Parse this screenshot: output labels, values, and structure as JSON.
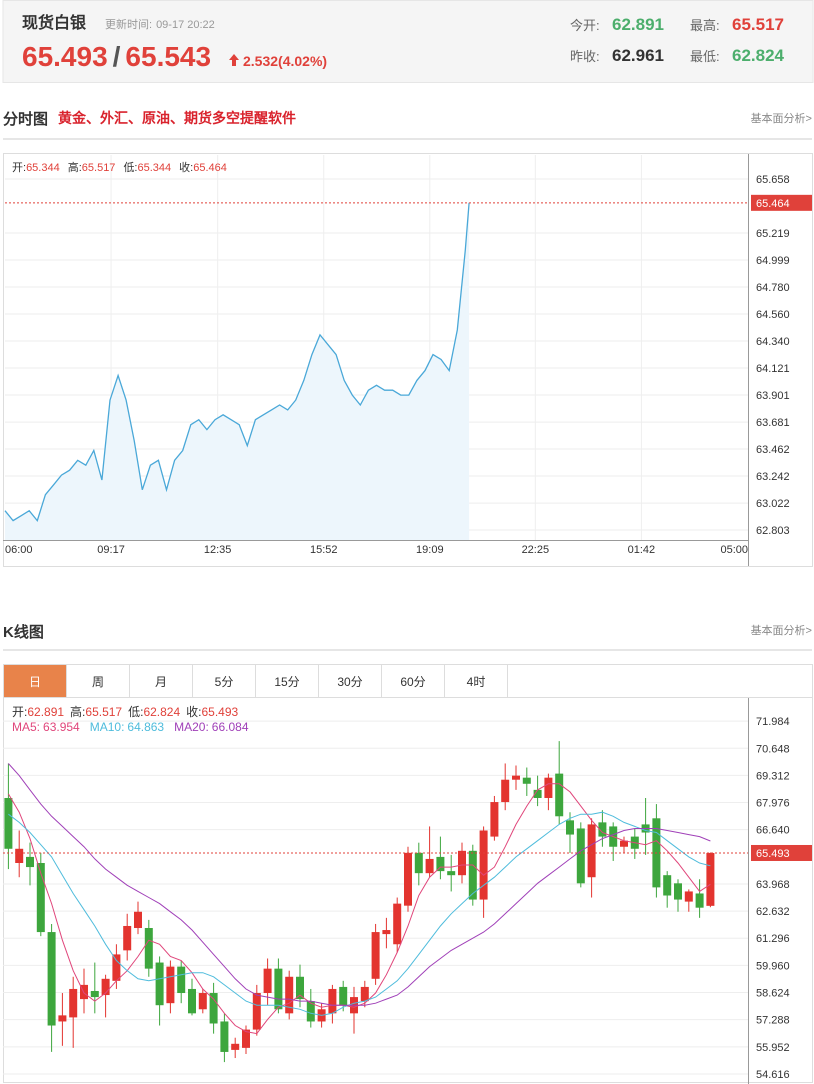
{
  "header": {
    "title": "现货白银",
    "update_label": "更新时间:",
    "update_time": "09-17 20:22",
    "price": "65.493",
    "separator": "/",
    "price2": "65.543",
    "change": "2.532(4.02%)",
    "stats": [
      {
        "label": "今开:",
        "value": "62.891",
        "color": "#4cae6c"
      },
      {
        "label": "最高:",
        "value": "65.517",
        "color": "#e0413a"
      },
      {
        "label": "昨收:",
        "value": "62.961",
        "color": "#333333"
      },
      {
        "label": "最低:",
        "value": "62.824",
        "color": "#4cae6c"
      }
    ]
  },
  "sections": [
    {
      "title": "分时图",
      "promo": "黄金、外汇、原油、期货多空提醒软件",
      "link": "基本面分析>"
    },
    {
      "title": "K线图",
      "link": "基本面分析>"
    }
  ],
  "tabs": [
    "日",
    "周",
    "月",
    "5分",
    "15分",
    "30分",
    "60分",
    "4时"
  ],
  "active_tab": 0,
  "chart_data": [
    {
      "type": "line",
      "stats": [
        {
          "label": "开:",
          "value": 65.344
        },
        {
          "label": "高:",
          "value": 65.517
        },
        {
          "label": "低:",
          "value": 65.344
        },
        {
          "label": "收:",
          "value": 65.464
        }
      ],
      "x": [
        "06:00",
        "06:15",
        "06:30",
        "06:45",
        "07:00",
        "07:15",
        "07:30",
        "07:45",
        "08:00",
        "08:15",
        "08:30",
        "08:45",
        "09:00",
        "09:15",
        "09:30",
        "09:45",
        "10:00",
        "10:15",
        "10:30",
        "10:45",
        "11:00",
        "11:15",
        "11:30",
        "11:45",
        "12:00",
        "12:15",
        "12:30",
        "12:45",
        "13:00",
        "13:15",
        "13:30",
        "13:45",
        "14:00",
        "14:15",
        "14:30",
        "14:45",
        "15:00",
        "15:15",
        "15:30",
        "15:45",
        "16:00",
        "16:15",
        "16:30",
        "16:45",
        "17:00",
        "17:15",
        "17:30",
        "17:45",
        "18:00",
        "18:15",
        "18:30",
        "18:45",
        "19:00",
        "19:15",
        "19:30",
        "19:45",
        "20:00",
        "20:15",
        "20:22"
      ],
      "values": [
        62.96,
        62.88,
        62.92,
        62.96,
        62.88,
        63.09,
        63.17,
        63.25,
        63.29,
        63.37,
        63.33,
        63.45,
        63.21,
        63.86,
        64.06,
        63.86,
        63.53,
        63.13,
        63.33,
        63.37,
        63.13,
        63.37,
        63.45,
        63.66,
        63.7,
        63.62,
        63.7,
        63.74,
        63.7,
        63.66,
        63.49,
        63.7,
        63.74,
        63.78,
        63.82,
        63.78,
        63.86,
        64.02,
        64.23,
        64.39,
        64.31,
        64.23,
        64.02,
        63.9,
        63.82,
        63.94,
        63.98,
        63.94,
        63.94,
        63.9,
        63.9,
        64.02,
        64.1,
        64.23,
        64.19,
        64.1,
        64.43,
        65.08,
        65.464
      ],
      "color": "#4aa8d8",
      "fill": "#edf6fc",
      "xlim": [
        "06:00",
        "05:00"
      ],
      "xticks": [
        "06:00",
        "09:17",
        "12:35",
        "15:52",
        "19:09",
        "22:25",
        "01:42",
        "05:00"
      ],
      "ylim": [
        62.722,
        65.853
      ],
      "yticks": [
        65.658,
        65.219,
        64.999,
        {
          "value": 64.78,
          "label": "64.780"
        },
        {
          "value": 64.56,
          "label": "64.560"
        },
        {
          "value": 64.34,
          "label": "64.340"
        },
        64.121,
        63.901,
        63.681,
        63.462,
        63.242,
        63.022,
        62.803
      ],
      "grid": true,
      "last_line_color": "#e0413a"
    },
    {
      "type": "candlestick",
      "ohlc_labels": [
        "开:",
        "高:",
        "低:",
        "收:"
      ],
      "open": [
        68.2,
        65.0,
        65.3,
        65.0,
        61.6,
        57.2,
        57.4,
        58.3,
        58.7,
        58.5,
        59.2,
        60.7,
        61.8,
        61.8,
        60.1,
        58.1,
        59.9,
        58.8,
        57.8,
        58.6,
        57.2,
        55.8,
        55.9,
        56.8,
        58.6,
        59.8,
        57.6,
        59.4,
        58.2,
        57.2,
        57.6,
        58.9,
        57.6,
        58.2,
        59.3,
        61.5,
        61.0,
        62.9,
        65.5,
        64.5,
        65.3,
        64.6,
        64.4,
        65.6,
        63.2,
        66.3,
        68.0,
        69.1,
        69.2,
        68.6,
        68.2,
        69.4,
        67.1,
        66.7,
        64.3,
        67.0,
        66.8,
        65.8,
        66.3,
        66.9,
        67.2,
        64.4,
        64.0,
        63.1,
        63.5,
        62.891
      ],
      "high": [
        69.9,
        66.6,
        66.0,
        65.5,
        62.0,
        58.6,
        59.4,
        59.8,
        60.1,
        59.5,
        61.0,
        62.5,
        63.1,
        62.2,
        60.4,
        60.2,
        60.2,
        59.3,
        58.8,
        59.1,
        57.6,
        56.4,
        57.0,
        59.0,
        60.3,
        60.3,
        59.7,
        60.0,
        58.8,
        58.1,
        59.0,
        59.2,
        58.9,
        59.2,
        62.0,
        62.3,
        63.3,
        65.8,
        66.0,
        66.8,
        66.3,
        65.4,
        66.0,
        65.9,
        66.8,
        68.3,
        69.9,
        69.8,
        69.7,
        69.3,
        69.4,
        71.0,
        67.5,
        67.0,
        67.2,
        67.6,
        67.0,
        66.3,
        66.7,
        68.2,
        67.9,
        64.6,
        64.2,
        63.7,
        64.2,
        65.517
      ],
      "low": [
        64.7,
        64.3,
        63.9,
        61.4,
        55.7,
        56.0,
        55.9,
        57.6,
        57.6,
        57.4,
        58.8,
        60.2,
        61.5,
        59.4,
        57.0,
        57.6,
        58.1,
        57.5,
        57.6,
        56.6,
        55.2,
        55.4,
        55.6,
        56.5,
        58.0,
        57.6,
        57.3,
        57.9,
        56.9,
        56.9,
        57.1,
        57.7,
        56.6,
        57.9,
        59.0,
        60.8,
        60.6,
        62.6,
        63.9,
        64.3,
        64.2,
        63.6,
        64.0,
        62.9,
        62.3,
        66.1,
        67.6,
        68.6,
        68.3,
        67.8,
        67.6,
        66.9,
        65.5,
        63.8,
        63.3,
        65.8,
        65.1,
        65.5,
        65.2,
        65.4,
        63.3,
        62.8,
        62.6,
        62.6,
        62.3,
        62.824
      ],
      "close": [
        65.7,
        65.7,
        64.8,
        61.6,
        57.0,
        57.5,
        58.8,
        59.0,
        58.4,
        59.3,
        60.5,
        61.9,
        62.6,
        59.8,
        58.0,
        59.9,
        58.6,
        57.6,
        58.6,
        57.1,
        55.7,
        56.1,
        56.8,
        58.6,
        59.8,
        57.8,
        59.4,
        58.3,
        57.2,
        57.8,
        58.8,
        58.0,
        58.4,
        58.9,
        61.6,
        61.7,
        63.0,
        65.5,
        64.5,
        65.2,
        64.6,
        64.4,
        65.6,
        63.2,
        66.6,
        68.0,
        69.1,
        69.3,
        68.9,
        68.2,
        69.2,
        67.3,
        66.4,
        64.0,
        66.9,
        66.3,
        65.8,
        66.1,
        65.7,
        66.5,
        63.8,
        63.4,
        63.2,
        63.6,
        62.8,
        65.493
      ],
      "up_color": "#e3342f",
      "down_color": "#3da63d",
      "series": [
        {
          "name": "MA5:",
          "color": "#e0467b",
          "values": [
            68.4,
            67.5,
            66.2,
            64.5,
            63.0,
            61.2,
            59.7,
            58.6,
            58.2,
            58.6,
            59.2,
            59.7,
            60.4,
            61.2,
            61.0,
            60.4,
            60.2,
            59.6,
            58.8,
            58.3,
            57.6,
            57.0,
            56.7,
            56.6,
            57.3,
            57.9,
            58.1,
            58.5,
            58.1,
            57.9,
            58.0,
            58.0,
            57.9,
            58.1,
            58.6,
            59.5,
            60.6,
            61.9,
            63.4,
            64.3,
            64.8,
            64.8,
            64.9,
            64.9,
            64.4,
            64.8,
            65.8,
            66.9,
            67.8,
            68.6,
            68.9,
            68.9,
            68.5,
            67.8,
            67.1,
            66.5,
            66.3,
            66.1,
            66.0,
            65.9,
            66.1,
            65.6,
            65.0,
            64.3,
            63.6,
            63.954
          ]
        },
        {
          "name": "MA10:",
          "color": "#4fbcdc",
          "values": [
            67.4,
            67.0,
            66.5,
            65.9,
            65.3,
            64.4,
            63.5,
            62.7,
            61.9,
            61.0,
            60.2,
            59.7,
            59.3,
            59.2,
            59.3,
            59.4,
            59.5,
            59.6,
            59.6,
            59.4,
            59.0,
            58.6,
            58.2,
            58.0,
            58.0,
            58.0,
            57.9,
            57.8,
            57.6,
            57.5,
            57.6,
            57.9,
            58.1,
            58.2,
            58.4,
            58.8,
            59.2,
            59.8,
            60.5,
            61.2,
            61.9,
            62.5,
            63.0,
            63.5,
            63.9,
            64.3,
            64.8,
            65.3,
            65.7,
            66.1,
            66.5,
            66.9,
            67.2,
            67.4,
            67.4,
            67.5,
            67.3,
            67.0,
            66.8,
            66.6,
            66.5,
            66.1,
            65.7,
            65.3,
            65.0,
            64.863
          ]
        },
        {
          "name": "MA20:",
          "color": "#a040b8",
          "values": [
            69.9,
            69.3,
            68.6,
            67.9,
            67.3,
            66.8,
            66.3,
            65.8,
            65.2,
            64.7,
            64.3,
            63.9,
            63.6,
            63.3,
            63.0,
            62.6,
            62.2,
            61.7,
            61.1,
            60.5,
            59.9,
            59.3,
            58.8,
            58.5,
            58.4,
            58.3,
            58.3,
            58.2,
            58.2,
            58.1,
            58.0,
            58.0,
            58.0,
            58.0,
            58.1,
            58.3,
            58.5,
            58.9,
            59.4,
            59.9,
            60.3,
            60.7,
            61.0,
            61.3,
            61.6,
            62.0,
            62.5,
            63.0,
            63.5,
            64.0,
            64.4,
            64.8,
            65.2,
            65.6,
            65.9,
            66.2,
            66.4,
            66.6,
            66.7,
            66.7,
            66.7,
            66.6,
            66.5,
            66.4,
            66.3,
            66.084
          ]
        }
      ],
      "ylim": [
        54.22,
        73.122
      ],
      "yticks": [
        71.984,
        70.648,
        69.312,
        67.976,
        {
          "value": 66.64,
          "label": "66.640"
        },
        63.968,
        62.632,
        61.296,
        {
          "value": 59.96,
          "label": "59.960"
        },
        58.624,
        57.288,
        55.952,
        54.616
      ],
      "grid": true,
      "last_line_color": "#e0413a"
    }
  ]
}
